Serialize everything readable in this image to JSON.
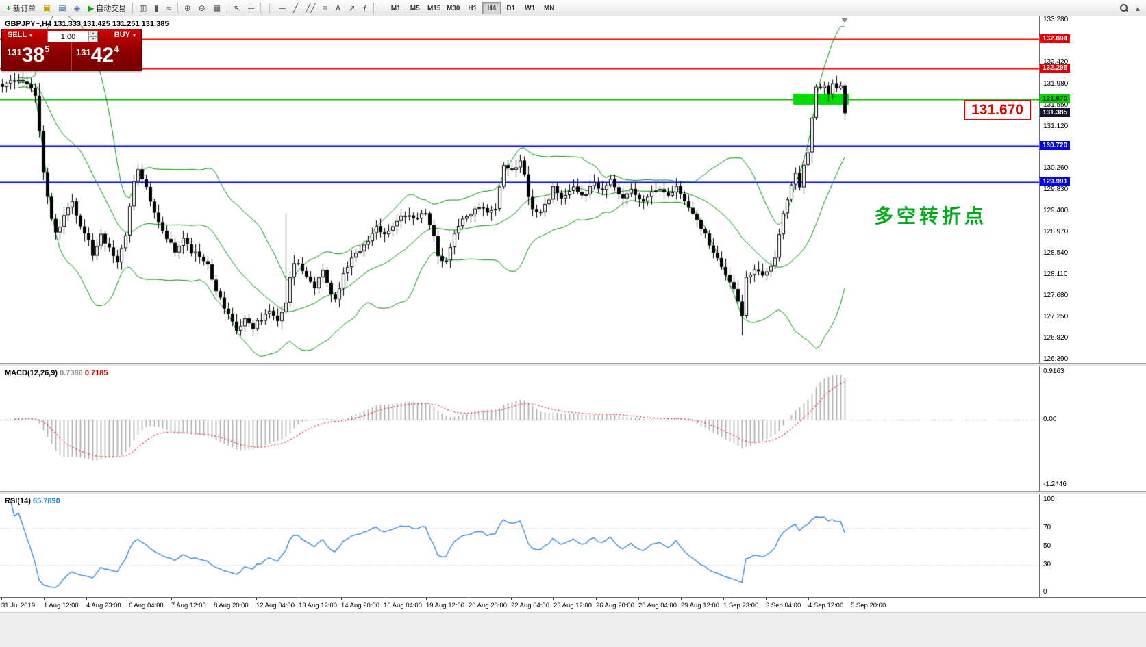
{
  "toolbar": {
    "groups": [
      {
        "buttons": [
          {
            "name": "new-order",
            "glyph": "+",
            "glyph_color": "#119c11",
            "label": "新订单"
          },
          {
            "name": "chart-window",
            "glyph": "▣",
            "glyph_color": "#c8a000"
          },
          {
            "name": "profiles",
            "glyph": "▤",
            "glyph_color": "#3b6fb5"
          },
          {
            "name": "data-window",
            "glyph": "◈",
            "glyph_color": "#3b6fb5"
          },
          {
            "name": "auto-trading",
            "glyph": "▶",
            "glyph_color": "#119c11",
            "label": "自动交易"
          }
        ]
      },
      {
        "buttons": [
          {
            "name": "bar-chart",
            "glyph": "▥"
          },
          {
            "name": "candlestick-chart",
            "glyph": "▮"
          },
          {
            "name": "line-chart",
            "glyph": "≈"
          }
        ]
      },
      {
        "buttons": [
          {
            "name": "zoom-in",
            "glyph": "⊕"
          },
          {
            "name": "zoom-out",
            "glyph": "⊖"
          },
          {
            "name": "auto-scroll",
            "glyph": "▦"
          }
        ]
      },
      {
        "buttons": [
          {
            "name": "cursor",
            "glyph": "↖"
          },
          {
            "name": "crosshair",
            "glyph": "┼"
          }
        ]
      },
      {
        "buttons": [
          {
            "name": "vertical-line",
            "glyph": "│"
          },
          {
            "name": "horizontal-line",
            "glyph": "─"
          },
          {
            "name": "trendline",
            "glyph": "╱"
          },
          {
            "name": "equidistant-channel",
            "glyph": "╱╱"
          },
          {
            "name": "fibonacci-retracement",
            "glyph": "≡"
          },
          {
            "name": "text-label",
            "glyph": "A"
          },
          {
            "name": "arrow-tools",
            "glyph": "↗"
          },
          {
            "name": "indicators-list",
            "glyph": "ƒ"
          }
        ]
      }
    ],
    "timeframes": [
      {
        "label": "M1",
        "active": false
      },
      {
        "label": "M5",
        "active": false
      },
      {
        "label": "M15",
        "active": false
      },
      {
        "label": "M30",
        "active": false
      },
      {
        "label": "H1",
        "active": false
      },
      {
        "label": "H4",
        "active": true
      },
      {
        "label": "D1",
        "active": false
      },
      {
        "label": "W1",
        "active": false
      },
      {
        "label": "MN",
        "active": false
      }
    ],
    "right": [
      {
        "name": "search",
        "glyph": ""
      },
      {
        "name": "scroll-up",
        "glyph": "▴"
      }
    ]
  },
  "trade_panel": {
    "sell_label": "SELL",
    "buy_label": "BUY",
    "volume": "1.00",
    "sell_price": {
      "prefix": "131",
      "big": "38",
      "sup": "5"
    },
    "buy_price": {
      "prefix": "131",
      "big": "42",
      "sup": "4"
    }
  },
  "chart": {
    "header": "GBPJPY~,H4  131.333 131.425 131.251 131.385",
    "annotation": "多空转折点",
    "callout": "131.670"
  },
  "price_axis": {
    "ticks": [
      "133.280",
      "132.850",
      "132.420",
      "131.980",
      "131.550",
      "131.120",
      "130.690",
      "130.260",
      "129.830",
      "129.400",
      "128.970",
      "128.540",
      "128.110",
      "127.680",
      "127.250",
      "126.820",
      "126.390"
    ],
    "tags": [
      {
        "label": "132.894",
        "bg": "#e60000",
        "fg": "#ffffff"
      },
      {
        "label": "132.295",
        "bg": "#e60000",
        "fg": "#ffffff"
      },
      {
        "label": "131.670",
        "bg": "#00d200",
        "fg": "#062e06"
      },
      {
        "label": "131.385",
        "bg": "#15152e",
        "fg": "#ffffff"
      },
      {
        "label": "130.720",
        "bg": "#0000e0",
        "fg": "#ffffff"
      },
      {
        "label": "129.991",
        "bg": "#0000e0",
        "fg": "#ffffff"
      }
    ]
  },
  "macd": {
    "name": "MACD(12,26,9)",
    "value_main": "0.7386",
    "value_signal": "0.7185",
    "axis": [
      "0.9163",
      "0.00",
      "-1.2446"
    ]
  },
  "rsi": {
    "name": "RSI(14)",
    "value": "65.7890",
    "axis": [
      "100",
      "70",
      "50",
      "30",
      "0"
    ]
  },
  "time_axis": {
    "labels": [
      "31 Jul 2019",
      "1 Aug 12:00",
      "4 Aug 23:00",
      "6 Aug 04:00",
      "7 Aug 12:00",
      "8 Aug 20:00",
      "12 Aug 04:00",
      "13 Aug 12:00",
      "14 Aug 20:00",
      "16 Aug 04:00",
      "19 Aug 12:00",
      "20 Aug 20:00",
      "22 Aug 04:00",
      "23 Aug 12:00",
      "26 Aug 20:00",
      "28 Aug 04:00",
      "29 Aug 12:00",
      "1 Sep 23:00",
      "3 Sep 04:00",
      "4 Sep 12:00",
      "5 Sep 20:00"
    ]
  },
  "chart_data": {
    "type": "candlestick",
    "symbol": "GBPJPY~",
    "timeframe": "H4",
    "last_bar": {
      "open": 131.333,
      "high": 131.425,
      "low": 131.251,
      "close": 131.385
    },
    "bid": 131.385,
    "ask": 131.424,
    "bars": 206,
    "view_price_range": [
      126.32,
      133.35
    ],
    "close_keypoints": [
      [
        0,
        131.95
      ],
      [
        3,
        132.08
      ],
      [
        6,
        131.98
      ],
      [
        8,
        131.72
      ],
      [
        9,
        131.0
      ],
      [
        10,
        130.2
      ],
      [
        11,
        129.65
      ],
      [
        13,
        128.95
      ],
      [
        15,
        129.3
      ],
      [
        17,
        129.6
      ],
      [
        19,
        129.1
      ],
      [
        21,
        128.8
      ],
      [
        22,
        128.5
      ],
      [
        24,
        128.9
      ],
      [
        26,
        128.62
      ],
      [
        28,
        128.35
      ],
      [
        30,
        128.9
      ],
      [
        31,
        129.45
      ],
      [
        32,
        129.95
      ],
      [
        33,
        130.25
      ],
      [
        34,
        130.02
      ],
      [
        35,
        129.85
      ],
      [
        37,
        129.4
      ],
      [
        39,
        129.05
      ],
      [
        41,
        128.72
      ],
      [
        42,
        128.55
      ],
      [
        44,
        128.8
      ],
      [
        46,
        128.6
      ],
      [
        48,
        128.48
      ],
      [
        50,
        128.3
      ],
      [
        52,
        127.8
      ],
      [
        54,
        127.45
      ],
      [
        56,
        127.1
      ],
      [
        57,
        126.95
      ],
      [
        59,
        127.25
      ],
      [
        61,
        127.05
      ],
      [
        63,
        127.2
      ],
      [
        65,
        127.35
      ],
      [
        67,
        127.15
      ],
      [
        69,
        127.55
      ],
      [
        70,
        128.05
      ],
      [
        71,
        128.35
      ],
      [
        73,
        128.2
      ],
      [
        75,
        128.0
      ],
      [
        76,
        127.85
      ],
      [
        78,
        128.15
      ],
      [
        80,
        127.72
      ],
      [
        81,
        127.6
      ],
      [
        83,
        128.1
      ],
      [
        85,
        128.45
      ],
      [
        87,
        128.6
      ],
      [
        89,
        128.75
      ],
      [
        91,
        129.1
      ],
      [
        93,
        128.9
      ],
      [
        95,
        129.05
      ],
      [
        97,
        129.25
      ],
      [
        99,
        129.35
      ],
      [
        101,
        129.25
      ],
      [
        103,
        129.35
      ],
      [
        105,
        128.9
      ],
      [
        106,
        128.5
      ],
      [
        108,
        128.35
      ],
      [
        110,
        128.95
      ],
      [
        112,
        129.2
      ],
      [
        114,
        129.35
      ],
      [
        116,
        129.45
      ],
      [
        118,
        129.4
      ],
      [
        120,
        129.5
      ],
      [
        121,
        129.9
      ],
      [
        122,
        130.35
      ],
      [
        124,
        130.25
      ],
      [
        126,
        130.42
      ],
      [
        127,
        130.1
      ],
      [
        128,
        129.7
      ],
      [
        129,
        129.45
      ],
      [
        131,
        129.35
      ],
      [
        133,
        129.65
      ],
      [
        134,
        129.85
      ],
      [
        136,
        129.6
      ],
      [
        138,
        129.8
      ],
      [
        139,
        129.95
      ],
      [
        141,
        129.7
      ],
      [
        143,
        129.85
      ],
      [
        144,
        129.95
      ],
      [
        146,
        129.8
      ],
      [
        148,
        130.0
      ],
      [
        150,
        129.8
      ],
      [
        151,
        129.65
      ],
      [
        153,
        129.85
      ],
      [
        155,
        129.7
      ],
      [
        156,
        129.55
      ],
      [
        158,
        129.8
      ],
      [
        160,
        129.9
      ],
      [
        162,
        129.75
      ],
      [
        164,
        129.9
      ],
      [
        166,
        129.55
      ],
      [
        168,
        129.35
      ],
      [
        170,
        129.05
      ],
      [
        172,
        128.75
      ],
      [
        174,
        128.4
      ],
      [
        176,
        128.1
      ],
      [
        178,
        127.85
      ],
      [
        179,
        127.55
      ],
      [
        180,
        127.25
      ],
      [
        181,
        128.05
      ],
      [
        183,
        128.2
      ],
      [
        185,
        128.05
      ],
      [
        187,
        128.3
      ],
      [
        188,
        128.5
      ],
      [
        189,
        128.9
      ],
      [
        190,
        129.35
      ],
      [
        191,
        129.65
      ],
      [
        192,
        129.95
      ],
      [
        193,
        130.15
      ],
      [
        194,
        129.9
      ],
      [
        195,
        130.3
      ],
      [
        196,
        130.6
      ],
      [
        197,
        131.3
      ],
      [
        198,
        131.9
      ],
      [
        199,
        131.85
      ],
      [
        200,
        131.95
      ],
      [
        201,
        131.8
      ],
      [
        202,
        131.95
      ],
      [
        203,
        131.88
      ],
      [
        204,
        131.95
      ],
      [
        205,
        131.385
      ]
    ],
    "wick_overrides": {
      "9": {
        "high": 132.0
      },
      "69": {
        "high": 129.35
      },
      "180": {
        "low": 126.88
      },
      "197": {
        "low": 130.35
      },
      "205": {
        "low": 131.26
      }
    },
    "hlines": [
      {
        "price": 132.894,
        "color": "#ff0000",
        "width": 1.8
      },
      {
        "price": 132.295,
        "color": "#ff0000",
        "width": 1.8
      },
      {
        "price": 131.67,
        "color": "#00c000",
        "width": 1.8
      },
      {
        "price": 130.72,
        "color": "#0000ff",
        "width": 2.2
      },
      {
        "price": 129.991,
        "color": "#0000ff",
        "width": 2.2
      }
    ],
    "highlight_box": {
      "from_bar": 193,
      "to_bar": 205,
      "price_top": 131.78,
      "price_bottom": 131.555,
      "color": "#00dc00"
    },
    "indicators": {
      "bollinger": {
        "period": 20,
        "deviation": 2,
        "color": "#009400"
      },
      "macd": {
        "fast": 12,
        "slow": 26,
        "signal": 9,
        "main_value": 0.7386,
        "signal_value": 0.7185,
        "axis_range": [
          -1.2446,
          0.9163
        ],
        "histogram_color": "#ababab",
        "signal_color": "#ff0000"
      },
      "rsi": {
        "period": 14,
        "value": 65.789,
        "color": "#2a7fde",
        "levels": [
          30,
          70
        ],
        "axis_range": [
          0,
          100
        ]
      }
    }
  }
}
